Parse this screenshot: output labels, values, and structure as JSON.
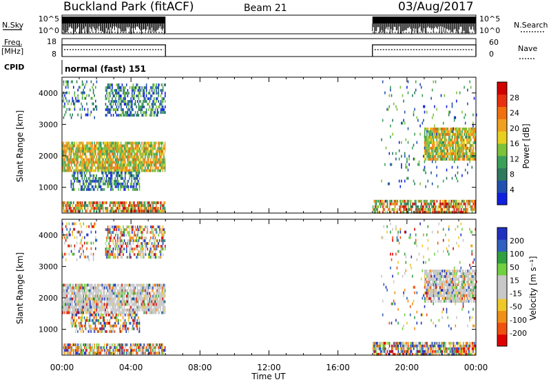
{
  "header": {
    "station": "Buckland Park (fitACF)",
    "beam": "Beam 21",
    "date": "03/Aug/2017"
  },
  "strips": {
    "nsky_label": "N.Sky",
    "nsearch_label": "N.Search",
    "freq_label_1": "Freq.",
    "freq_label_2": "[MHz]",
    "nave_label": "Nave",
    "cpid_label": "CPID",
    "nsky_ticks": [
      "10^5",
      "10^0"
    ],
    "freq_ticks": [
      "18",
      "8"
    ],
    "nave_ticks": [
      "60",
      "0"
    ],
    "cpid_text": "normal (fast) 151",
    "operating_hours": [
      [
        0,
        6
      ],
      [
        18,
        24
      ]
    ]
  },
  "time_axis": {
    "label": "Time UT",
    "ticks": [
      "00:00",
      "04:00",
      "08:00",
      "12:00",
      "16:00",
      "20:00",
      "00:00"
    ]
  },
  "chart_data": [
    {
      "type": "heatmap",
      "name": "power",
      "ylabel": "Slant Range [km]",
      "xlim": [
        0,
        24
      ],
      "ylim": [
        180,
        4500
      ],
      "yticks": [
        1000,
        2000,
        3000,
        4000
      ],
      "colorbar": {
        "label": "Power [dB]",
        "ticks": [
          "28",
          "24",
          "20",
          "16",
          "12",
          "8",
          "4"
        ],
        "colors": [
          "#1020e0",
          "#2050b0",
          "#2e7a5e",
          "#3aa05a",
          "#7cc23a",
          "#e8d020",
          "#f0a020",
          "#f07010",
          "#e83010",
          "#d00000"
        ]
      },
      "regions": [
        {
          "t": [
            0,
            6
          ],
          "r": [
            1500,
            2450
          ],
          "level": "high"
        },
        {
          "t": [
            0.5,
            4.5
          ],
          "r": [
            900,
            1500
          ],
          "level": "mid"
        },
        {
          "t": [
            2.5,
            6
          ],
          "r": [
            3300,
            4300
          ],
          "level": "mid"
        },
        {
          "t": [
            0,
            2
          ],
          "r": [
            3200,
            4400
          ],
          "level": "low"
        },
        {
          "t": [
            0,
            6
          ],
          "r": [
            200,
            550
          ],
          "level": "ground"
        },
        {
          "t": [
            18,
            24
          ],
          "r": [
            200,
            600
          ],
          "level": "ground"
        },
        {
          "t": [
            21,
            24
          ],
          "r": [
            1900,
            2900
          ],
          "level": "high"
        },
        {
          "t": [
            18.5,
            24
          ],
          "r": [
            1000,
            4400
          ],
          "level": "sparse"
        }
      ]
    },
    {
      "type": "heatmap",
      "name": "velocity",
      "ylabel": "Slant Range [km]",
      "xlim": [
        0,
        24
      ],
      "ylim": [
        180,
        4500
      ],
      "yticks": [
        1000,
        2000,
        3000,
        4000
      ],
      "colorbar": {
        "label": "Velocity [m s⁻¹]",
        "ticks": [
          "200",
          "100",
          "50",
          "15",
          "-15",
          "-50",
          "-100",
          "-200"
        ],
        "colors": [
          "#e00000",
          "#f05010",
          "#f09018",
          "#f0c828",
          "#c8c8c8",
          "#c8c8c8",
          "#70d040",
          "#30a040",
          "#3060c0",
          "#2030c0"
        ]
      },
      "regions": [
        {
          "t": [
            0,
            6
          ],
          "r": [
            1500,
            2450
          ],
          "level": "high"
        },
        {
          "t": [
            0.5,
            4.5
          ],
          "r": [
            900,
            1500
          ],
          "level": "mid"
        },
        {
          "t": [
            2.5,
            6
          ],
          "r": [
            3300,
            4300
          ],
          "level": "mid"
        },
        {
          "t": [
            0,
            2
          ],
          "r": [
            3200,
            4400
          ],
          "level": "low"
        },
        {
          "t": [
            0,
            6
          ],
          "r": [
            200,
            550
          ],
          "level": "ground"
        },
        {
          "t": [
            18,
            24
          ],
          "r": [
            200,
            600
          ],
          "level": "ground"
        },
        {
          "t": [
            21,
            24
          ],
          "r": [
            1900,
            2900
          ],
          "level": "high"
        },
        {
          "t": [
            18.5,
            24
          ],
          "r": [
            1000,
            4400
          ],
          "level": "sparse"
        }
      ]
    }
  ]
}
